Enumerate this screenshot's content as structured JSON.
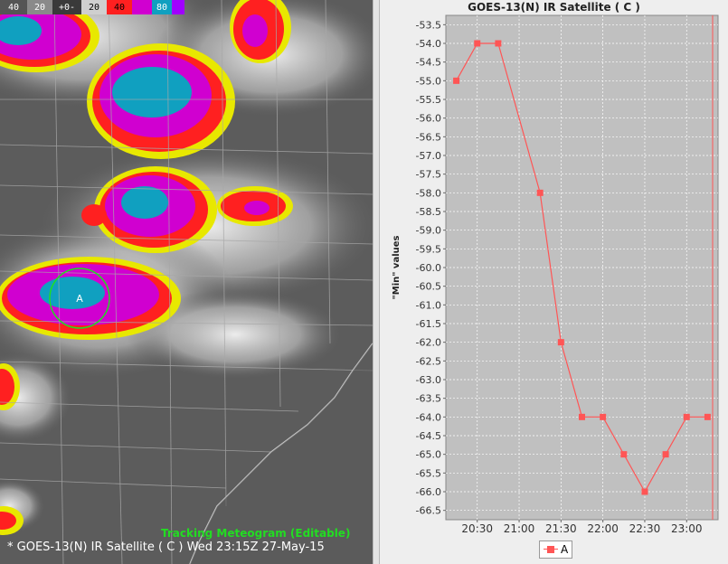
{
  "satellite": {
    "colorbar": [
      {
        "label": "40",
        "bg": "#555555",
        "fg": "#ffffff"
      },
      {
        "label": "20",
        "bg": "#8a8a8a",
        "fg": "#ffffff"
      },
      {
        "label": "+0-",
        "bg": "#3a3a3a",
        "fg": "#ffffff"
      },
      {
        "label": "20",
        "bg": "#cfcfcf",
        "fg": "#000000"
      },
      {
        "label": "40",
        "bg": "#ff2020",
        "fg": "#000000"
      },
      {
        "label": "",
        "bg": "#d000d0",
        "fg": "#ffffff"
      },
      {
        "label": "80",
        "bg": "#10a0c0",
        "fg": "#ffffff"
      },
      {
        "label": "",
        "bg": "#a000ff",
        "fg": "#ffffff"
      }
    ],
    "track_marker": "A",
    "tracking_label": "Tracking Meteogram (Editable)",
    "caption": "* GOES-13(N) IR Satellite ( C )   Wed 23:15Z 27-May-15"
  },
  "chart_data": {
    "type": "line",
    "title": "GOES-13(N) IR Satellite ( C )",
    "ylabel": "\"Min\" values",
    "xlabel": "",
    "ylim": [
      -66.75,
      -53.25
    ],
    "yticks": [
      "-53.5",
      "-54.0",
      "-54.5",
      "-55.0",
      "-55.5",
      "-56.0",
      "-56.5",
      "-57.0",
      "-57.5",
      "-58.0",
      "-58.5",
      "-59.0",
      "-59.5",
      "-60.0",
      "-60.5",
      "-61.0",
      "-61.5",
      "-62.0",
      "-62.5",
      "-63.0",
      "-63.5",
      "-64.0",
      "-64.5",
      "-65.0",
      "-65.5",
      "-66.0",
      "-66.5"
    ],
    "xticks": [
      "20:30",
      "21:00",
      "21:30",
      "22:00",
      "22:30",
      "23:00"
    ],
    "x": [
      "20:15",
      "20:30",
      "20:45",
      "21:15",
      "21:30",
      "21:45",
      "22:00",
      "22:15",
      "22:30",
      "22:45",
      "23:00",
      "23:15"
    ],
    "series": [
      {
        "name": "A",
        "color": "#ff5555",
        "values": [
          -55.0,
          -54.0,
          -54.0,
          -58.0,
          -62.0,
          -64.0,
          -64.0,
          -65.0,
          -66.0,
          -65.0,
          -64.0,
          -64.0
        ]
      }
    ],
    "grid": true,
    "legend": "bottom-center",
    "background": "#c0c0c0"
  }
}
